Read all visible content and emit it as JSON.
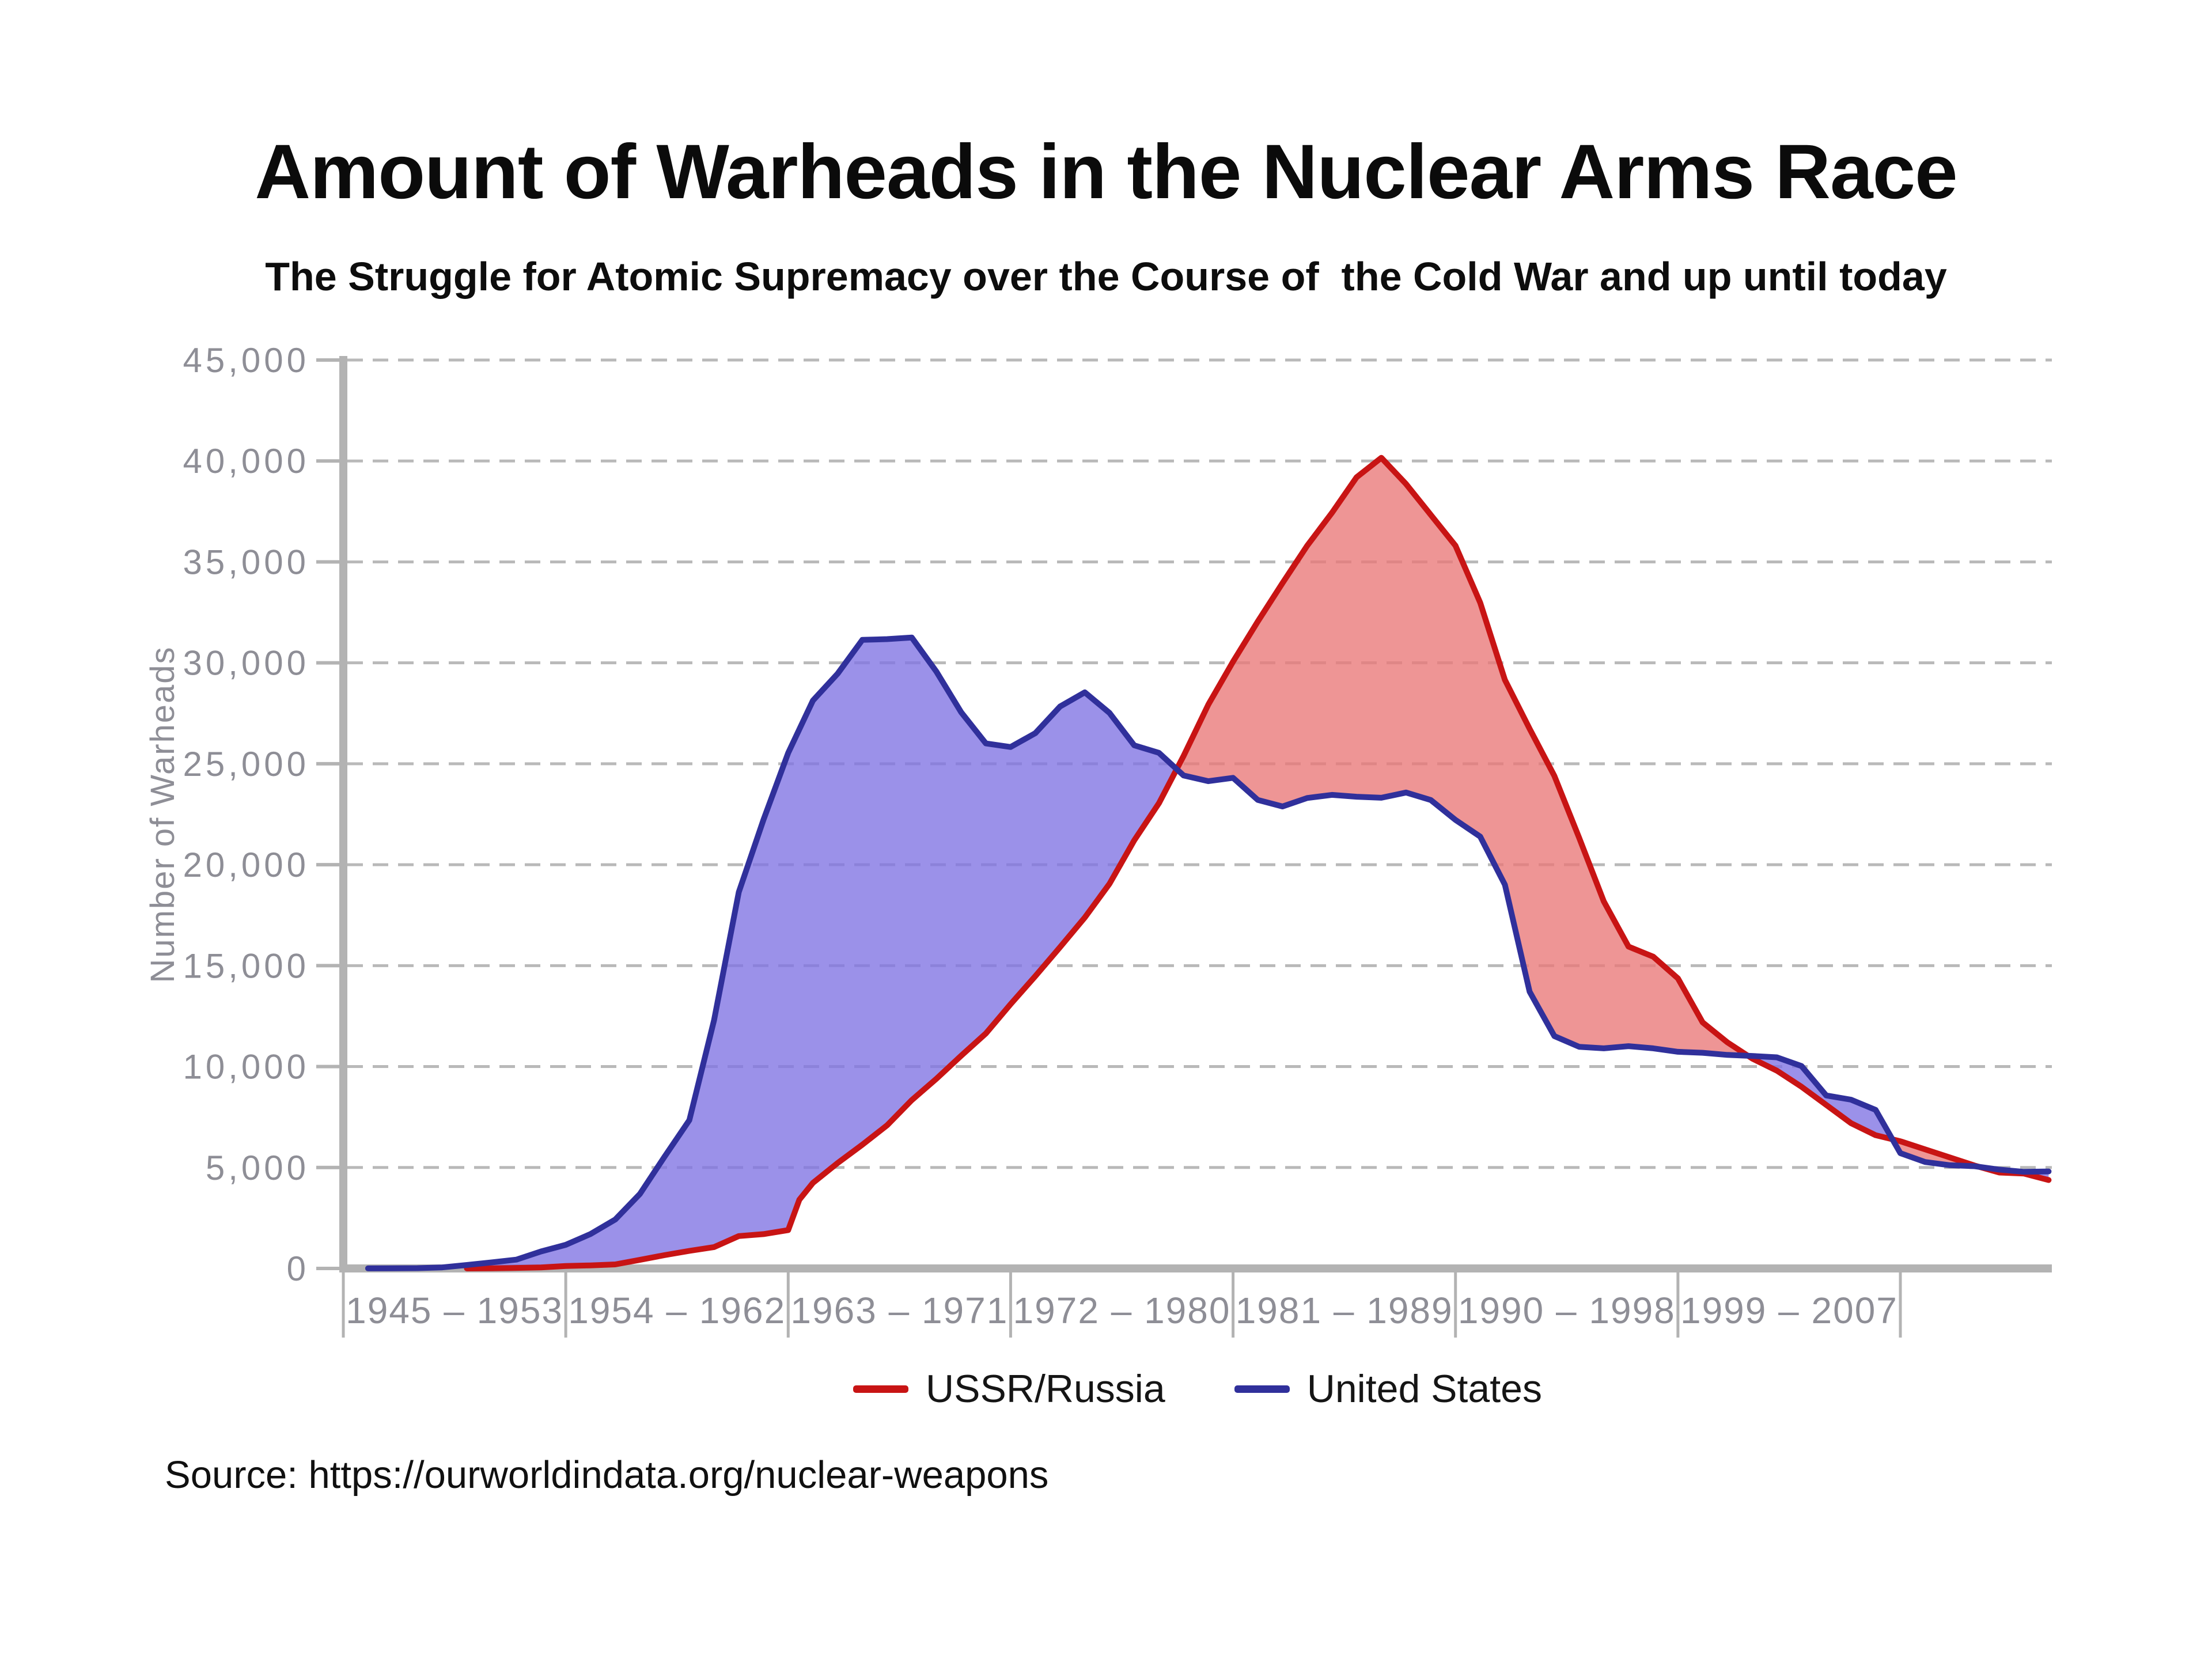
{
  "title": "Amount of Warheads in the Nuclear Arms Race",
  "subtitle": "The Struggle for Atomic Supremacy over the Course of  the Cold War and up until today",
  "source_note": "Source: https://ourworldindata.org/nuclear-weapons",
  "legend": {
    "position": "bottom-center",
    "items": [
      {
        "label": "USSR/Russia",
        "color": "#c81414"
      },
      {
        "label": "United States",
        "color": "#30309b"
      }
    ]
  },
  "colors": {
    "ussr_line": "#c81414",
    "ussr_fill": "#e97777",
    "us_line": "#30309b",
    "us_fill": "#7f72e3",
    "fill_opacity": 0.78,
    "grid": "#b9b9b9",
    "axis": "#b3b3b3",
    "tick_label": "#8e8e96",
    "text": "#101010"
  },
  "chart_data": {
    "type": "area",
    "title": "Amount of Warheads in the Nuclear Arms Race",
    "subtitle": "The Struggle for Atomic Supremacy over the Course of the Cold War and up until today",
    "xlabel": "",
    "ylabel": "Number of Warheads",
    "ylim": [
      0,
      45000
    ],
    "ytick_step": 5000,
    "ytick_labels": [
      "0",
      "5,000",
      "10,000",
      "15,000",
      "20,000",
      "25,000",
      "30,000",
      "35,000",
      "40,000",
      "45,000"
    ],
    "grid": "horizontal-dashed",
    "x_era_labels": [
      "1945 – 1953",
      "1954 – 1962",
      "1963 – 1971",
      "1972 – 1980",
      "1981 – 1989",
      "1990 – 1998",
      "1999 – 2007"
    ],
    "era_boundary_years": [
      1944,
      1953,
      1962,
      1971,
      1980,
      1989,
      1998,
      2007
    ],
    "x_range": [
      1944,
      2013.6
    ],
    "fill_rule": "area between the two curves, colored by whichever series is higher",
    "series": [
      {
        "name": "USSR/Russia",
        "x": [
          1949,
          1950,
          1951,
          1952,
          1953,
          1954,
          1955,
          1956,
          1957,
          1958,
          1959,
          1960,
          1961,
          1962,
          1962.45,
          1963,
          1964,
          1965,
          1966,
          1967,
          1968,
          1969,
          1970,
          1971,
          1972,
          1973,
          1974,
          1975,
          1976,
          1977,
          1978,
          1979,
          1980,
          1981,
          1982,
          1983,
          1984,
          1985,
          1986,
          1987,
          1988,
          1989,
          1990,
          1991,
          1992,
          1993,
          1994,
          1995,
          1996,
          1997,
          1998,
          1999,
          2000,
          2001,
          2002,
          2003,
          2004,
          2005,
          2006,
          2007,
          2008,
          2009,
          2010,
          2011,
          2012,
          2013
        ],
        "values": [
          1,
          5,
          25,
          50,
          120,
          150,
          200,
          426,
          660,
          869,
          1060,
          1605,
          1700,
          1900,
          3400,
          4238,
          5221,
          6129,
          7089,
          8339,
          9399,
          10538,
          11643,
          13092,
          14478,
          15915,
          17385,
          19055,
          21205,
          23044,
          25393,
          27935,
          30062,
          32049,
          33952,
          35804,
          37431,
          39197,
          40159,
          38859,
          37333,
          35805,
          32980,
          29154,
          26734,
          24403,
          21339,
          18179,
          15942,
          15442,
          14368,
          12188,
          11200,
          10400,
          9800,
          9000,
          8100,
          7200,
          6600,
          6300,
          5900,
          5500,
          5100,
          4750,
          4700,
          4380
        ]
      },
      {
        "name": "United States",
        "x": [
          1945,
          1946,
          1947,
          1948,
          1949,
          1950,
          1951,
          1952,
          1953,
          1954,
          1955,
          1956,
          1957,
          1958,
          1959,
          1960,
          1961,
          1962,
          1963,
          1964,
          1965,
          1966,
          1967,
          1968,
          1969,
          1970,
          1971,
          1972,
          1973,
          1974,
          1975,
          1976,
          1977,
          1978,
          1979,
          1980,
          1981,
          1982,
          1983,
          1984,
          1985,
          1986,
          1987,
          1988,
          1989,
          1990,
          1991,
          1992,
          1993,
          1994,
          1995,
          1996,
          1997,
          1998,
          1999,
          2000,
          2001,
          2002,
          2003,
          2004,
          2005,
          2006,
          2007,
          2008,
          2009,
          2010,
          2011,
          2012,
          2013
        ],
        "values": [
          2,
          9,
          13,
          50,
          170,
          299,
          438,
          841,
          1169,
          1703,
          2422,
          3692,
          5543,
          7345,
          12298,
          18638,
          22229,
          25540,
          28133,
          29463,
          31139,
          31175,
          31255,
          29561,
          27552,
          26008,
          25830,
          26516,
          27835,
          28537,
          27519,
          25914,
          25542,
          24418,
          24138,
          24304,
          23208,
          22886,
          23305,
          23459,
          23368,
          23317,
          23575,
          23205,
          22217,
          21392,
          19008,
          13708,
          11511,
          10979,
          10904,
          11011,
          10903,
          10732,
          10685,
          10577,
          10526,
          10457,
          10027,
          8570,
          8360,
          7853,
          5709,
          5273,
          5113,
          5066,
          4897,
          4785,
          4804
        ]
      }
    ]
  }
}
